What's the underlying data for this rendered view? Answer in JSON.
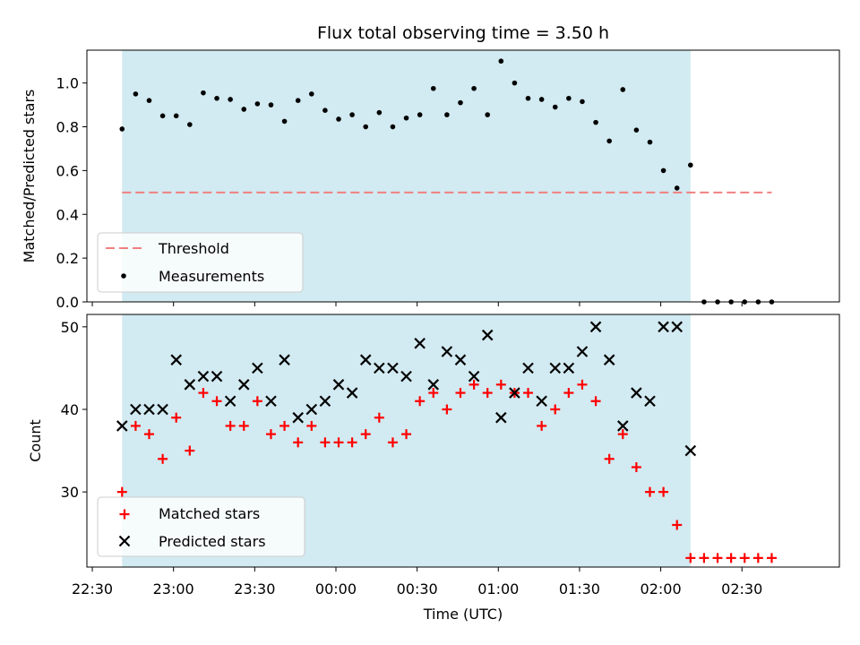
{
  "chart_data": [
    {
      "type": "scatter",
      "title": "Flux total observing time = 3.50 h",
      "ylabel": "Matched/Predicted stars",
      "xlabel": "",
      "x_unit": "minutes after 22:30 UTC",
      "xlim": [
        "22:28",
        "03:06"
      ],
      "ylim": [
        0,
        1.15
      ],
      "yticks": [
        0.0,
        0.2,
        0.4,
        0.6,
        0.8,
        1.0
      ],
      "shaded_interval": [
        "22:41",
        "02:11"
      ],
      "shade_color": "#add8e6",
      "threshold": {
        "name": "Threshold",
        "value": 0.5,
        "x_range": [
          "22:41",
          "02:41"
        ],
        "color": "#f08080",
        "style": "dashed"
      },
      "series": [
        {
          "name": "Measurements",
          "marker": "dot",
          "color": "#000000",
          "x": [
            "22:41",
            "22:46",
            "22:51",
            "22:56",
            "23:01",
            "23:06",
            "23:11",
            "23:16",
            "23:21",
            "23:26",
            "23:31",
            "23:36",
            "23:41",
            "23:46",
            "23:51",
            "23:56",
            "00:01",
            "00:06",
            "00:11",
            "00:16",
            "00:21",
            "00:26",
            "00:31",
            "00:36",
            "00:41",
            "00:46",
            "00:51",
            "00:56",
            "01:01",
            "01:06",
            "01:11",
            "01:16",
            "01:21",
            "01:26",
            "01:31",
            "01:36",
            "01:41",
            "01:46",
            "01:51",
            "01:56",
            "02:01",
            "02:06",
            "02:11",
            "02:16",
            "02:21",
            "02:26",
            "02:31",
            "02:36",
            "02:41"
          ],
          "y": [
            0.79,
            0.95,
            0.92,
            0.85,
            0.85,
            0.81,
            0.955,
            0.93,
            0.925,
            0.88,
            0.905,
            0.9,
            0.825,
            0.92,
            0.95,
            0.875,
            0.835,
            0.855,
            0.8,
            0.865,
            0.8,
            0.84,
            0.855,
            0.975,
            0.855,
            0.91,
            0.975,
            0.855,
            1.1,
            1.0,
            0.93,
            0.925,
            0.89,
            0.93,
            0.915,
            0.82,
            0.735,
            0.97,
            0.785,
            0.73,
            0.6,
            0.52,
            0.625,
            0,
            0,
            0,
            0,
            0,
            0
          ]
        }
      ],
      "legend": {
        "location": "lower-left",
        "entries": [
          "Threshold",
          "Measurements"
        ]
      }
    },
    {
      "type": "scatter",
      "title": "",
      "ylabel": "Count",
      "xlabel": "Time (UTC)",
      "x_unit": "minutes after 22:30 UTC",
      "xlim": [
        "22:28",
        "03:06"
      ],
      "ylim": [
        20.9,
        51.5
      ],
      "yticks": [
        30,
        40,
        50
      ],
      "xticks": [
        "22:30",
        "23:00",
        "23:30",
        "00:00",
        "00:30",
        "01:00",
        "01:30",
        "02:00",
        "02:30"
      ],
      "shaded_interval": [
        "22:41",
        "02:11"
      ],
      "shade_color": "#add8e6",
      "series": [
        {
          "name": "Matched stars",
          "marker": "plus",
          "color": "#ff0000",
          "x": [
            "22:41",
            "22:46",
            "22:51",
            "22:56",
            "23:01",
            "23:06",
            "23:11",
            "23:16",
            "23:21",
            "23:26",
            "23:31",
            "23:36",
            "23:41",
            "23:46",
            "23:51",
            "23:56",
            "00:01",
            "00:06",
            "00:11",
            "00:16",
            "00:21",
            "00:26",
            "00:31",
            "00:36",
            "00:41",
            "00:46",
            "00:51",
            "00:56",
            "01:01",
            "01:06",
            "01:11",
            "01:16",
            "01:21",
            "01:26",
            "01:31",
            "01:36",
            "01:41",
            "01:46",
            "01:51",
            "01:56",
            "02:01",
            "02:06",
            "02:11",
            "02:16",
            "02:21",
            "02:26",
            "02:31",
            "02:36",
            "02:41"
          ],
          "y": [
            30,
            38,
            37,
            34,
            39,
            35,
            42,
            41,
            38,
            38,
            41,
            37,
            38,
            36,
            38,
            36,
            36,
            36,
            37,
            39,
            36,
            37,
            41,
            42,
            40,
            42,
            43,
            42,
            43,
            42,
            42,
            38,
            40,
            42,
            43,
            41,
            34,
            37,
            33,
            30,
            30,
            26,
            22,
            22,
            22,
            22,
            22,
            22,
            22
          ]
        },
        {
          "name": "Predicted stars",
          "marker": "x",
          "color": "#000000",
          "x": [
            "22:41",
            "22:46",
            "22:51",
            "22:56",
            "23:01",
            "23:06",
            "23:11",
            "23:16",
            "23:21",
            "23:26",
            "23:31",
            "23:36",
            "23:41",
            "23:46",
            "23:51",
            "23:56",
            "00:01",
            "00:06",
            "00:11",
            "00:16",
            "00:21",
            "00:26",
            "00:31",
            "00:36",
            "00:41",
            "00:46",
            "00:51",
            "00:56",
            "01:01",
            "01:06",
            "01:11",
            "01:16",
            "01:21",
            "01:26",
            "01:31",
            "01:36",
            "01:41",
            "01:46",
            "01:51",
            "01:56",
            "02:01",
            "02:06",
            "02:11"
          ],
          "y": [
            38,
            40,
            40,
            40,
            46,
            43,
            44,
            44,
            41,
            43,
            45,
            41,
            46,
            39,
            40,
            41,
            43,
            42,
            46,
            45,
            45,
            44,
            48,
            43,
            47,
            46,
            44,
            49,
            39,
            42,
            45,
            41,
            45,
            45,
            47,
            50,
            46,
            38,
            42,
            41,
            50,
            50,
            35
          ]
        }
      ],
      "legend": {
        "location": "lower-left",
        "entries": [
          "Matched stars",
          "Predicted stars"
        ]
      }
    }
  ]
}
